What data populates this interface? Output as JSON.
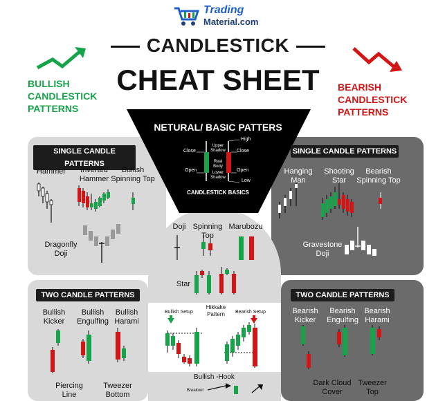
{
  "brand": {
    "name_line1": "Trading",
    "name_line2": "Material.com",
    "icon": "shopping-cart-icon"
  },
  "title": {
    "line1": "CANDLESTICK",
    "line2": "CHEAT SHEET"
  },
  "bullish_heading": {
    "line1": "BULLISH",
    "line2": "CANDLESTICK",
    "line3": "PATTERNS"
  },
  "bearish_heading": {
    "line1": "BEARISH",
    "line2": "CANDLESTICK",
    "line3": "PATTERNS"
  },
  "basics": {
    "title": "NETURAL/ BASIC PATTERS",
    "footer": "CANDLESTICK BASICS",
    "labels": {
      "close_left": "Close",
      "open_left": "Open",
      "upper_shadow": "Upper Shadow",
      "real_body": "Real Body",
      "lower_shadow": "Lower Shadow",
      "high": "High",
      "close_right": "Close",
      "open_right": "Open",
      "low": "Low"
    }
  },
  "single_bull": {
    "header": "SINGLE CANDLE PATTERNS",
    "hammer": "Hammer",
    "inverted_hammer": "Inverted Hammer",
    "bullish_spinning_top": "Bullish Spinning Top",
    "dragonfly_doji": "Dragonfly Doji"
  },
  "single_bear": {
    "header": "SINGLE CANDLE PATTERNS",
    "hanging_man": "Hanging Man",
    "shooting_star": "Shooting Star",
    "bearish_spinning_top": "Bearish Spinning Top",
    "gravestone_doji": "Gravestone Doji"
  },
  "neutral": {
    "doji": "Doji",
    "spinning_top": "Spinning Top",
    "marubozu": "Marubozu",
    "star": "Star",
    "bullish_setup": "Bullish Setup",
    "hikkake": "Hikkake Pattern",
    "bearish_setup": "Bearish Setup",
    "bullish_hook": "Bullish -Hook",
    "breakout": "Breakout"
  },
  "two_bull": {
    "header": "TWO CANDLE PATTERNS",
    "kicker": "Bullish Kicker",
    "engulfing": "Bullish Engulfing",
    "harami": "Bullish Harami",
    "piercing": "Piercing Line",
    "tweezer": "Tweezer Bottom"
  },
  "two_bear": {
    "header": "TWO CANDLE PATTERNS",
    "kicker": "Bearish Kicker",
    "engulfing": "Bearish Engulfing",
    "harami": "Bearish Harami",
    "dark_cloud": "Dark Cloud Cover",
    "tweezer": "Tweezer Top"
  },
  "colors": {
    "bull": "#16a34a",
    "bear": "#d31515",
    "panel_light": "#d9d9d9",
    "panel_dark": "#6b6b6b",
    "header": "#1c1c1c"
  }
}
